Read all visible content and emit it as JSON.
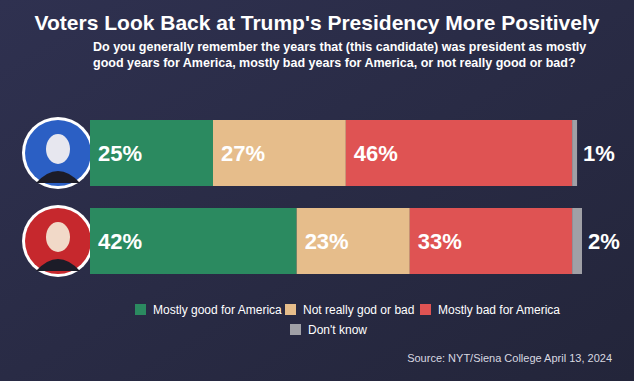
{
  "chart_data": {
    "type": "bar",
    "orientation": "horizontal",
    "stacked": true,
    "data_labels": true,
    "grid": false,
    "tick_labels": false,
    "legend": "bottom",
    "title": "Voters Look Back at Trump's Presidency More Positively",
    "subtitle": "Do you generally remember the years that (this candidate) was president as mostly good years for America, mostly bad years for America, or not really good or bad?",
    "source": "Source: NYT/Siena College April 13, 2024",
    "categories": [
      null,
      null
    ],
    "xlim": [
      0,
      100
    ],
    "series": [
      {
        "name": "Mostly good for America",
        "color": "#2b8a60",
        "values": [
          25,
          42
        ],
        "value_labels": [
          "25%",
          "42%"
        ]
      },
      {
        "name": "Not really god or bad",
        "color": "#e6bd8b",
        "values": [
          27,
          23
        ],
        "value_labels": [
          "27%",
          "23%"
        ]
      },
      {
        "name": "Mostly bad for America",
        "color": "#df5353",
        "values": [
          46,
          33
        ],
        "value_labels": [
          "46%",
          "33%"
        ]
      },
      {
        "name": "Don't know",
        "color": "#a0a0a6",
        "values": [
          1,
          2
        ],
        "value_labels": [
          "1%",
          "2%"
        ]
      }
    ]
  }
}
